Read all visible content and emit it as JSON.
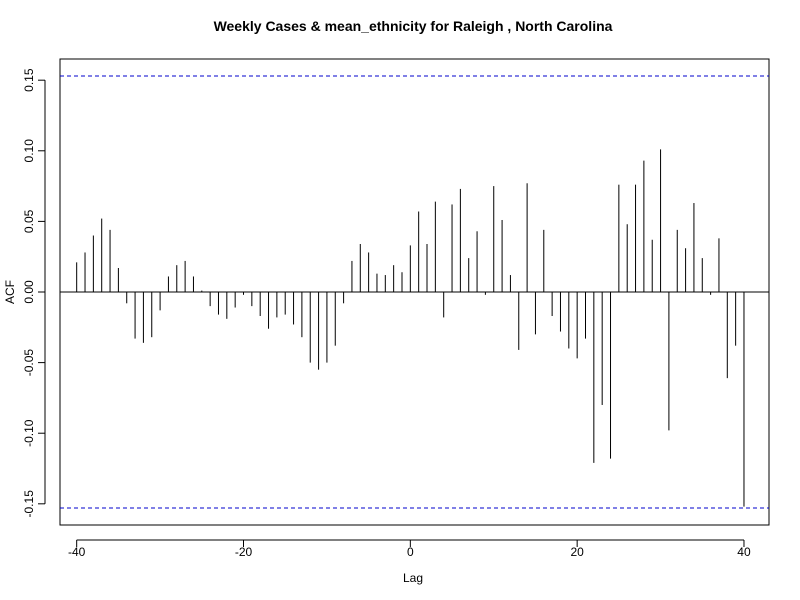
{
  "chart_data": {
    "type": "bar",
    "title": "Weekly Cases & mean_ethnicity for Raleigh , North Carolina",
    "xlabel": "Lag",
    "ylabel": "ACF",
    "xlim": [
      -42,
      43
    ],
    "ylim": [
      -0.165,
      0.165
    ],
    "x_ticks": [
      -40,
      -20,
      0,
      20,
      40
    ],
    "x_tick_labels": [
      "-40",
      "-20",
      "0",
      "20",
      "40"
    ],
    "y_ticks": [
      -0.15,
      -0.1,
      -0.05,
      0.0,
      0.05,
      0.1,
      0.15
    ],
    "y_tick_labels": [
      "-0.15",
      "-0.10",
      "-0.05",
      "0.00",
      "0.05",
      "0.10",
      "0.15"
    ],
    "grid": false,
    "confidence_bound": 0.153,
    "bar_color": "#000000",
    "bound_color": "#0000cc",
    "lags": [
      -40,
      -39,
      -38,
      -37,
      -36,
      -35,
      -34,
      -33,
      -32,
      -31,
      -30,
      -29,
      -28,
      -27,
      -26,
      -25,
      -24,
      -23,
      -22,
      -21,
      -20,
      -19,
      -18,
      -17,
      -16,
      -15,
      -14,
      -13,
      -12,
      -11,
      -10,
      -9,
      -8,
      -7,
      -6,
      -5,
      -4,
      -3,
      -2,
      -1,
      0,
      1,
      2,
      3,
      4,
      5,
      6,
      7,
      8,
      9,
      10,
      11,
      12,
      13,
      14,
      15,
      16,
      17,
      18,
      19,
      20,
      21,
      22,
      23,
      24,
      25,
      26,
      27,
      28,
      29,
      30,
      31,
      32,
      33,
      34,
      35,
      36,
      37,
      38,
      39,
      40
    ],
    "values": [
      0.021,
      0.028,
      0.04,
      0.052,
      0.044,
      0.017,
      -0.008,
      -0.033,
      -0.036,
      -0.032,
      -0.013,
      0.011,
      0.019,
      0.022,
      0.011,
      0.001,
      -0.01,
      -0.016,
      -0.019,
      -0.011,
      -0.002,
      -0.01,
      -0.017,
      -0.026,
      -0.018,
      -0.016,
      -0.023,
      -0.032,
      -0.05,
      -0.055,
      -0.05,
      -0.038,
      -0.008,
      0.022,
      0.034,
      0.028,
      0.013,
      0.012,
      0.019,
      0.014,
      0.033,
      0.057,
      0.034,
      0.064,
      -0.018,
      0.062,
      0.073,
      0.024,
      0.043,
      -0.002,
      0.075,
      0.051,
      0.012,
      -0.041,
      0.077,
      -0.03,
      0.044,
      -0.017,
      -0.028,
      -0.04,
      -0.047,
      -0.033,
      -0.121,
      -0.08,
      -0.118,
      0.076,
      0.048,
      0.076,
      0.093,
      0.037,
      0.101,
      -0.098,
      0.044,
      0.031,
      0.063,
      0.024,
      -0.002,
      0.038,
      -0.061,
      -0.038,
      -0.152
    ]
  }
}
